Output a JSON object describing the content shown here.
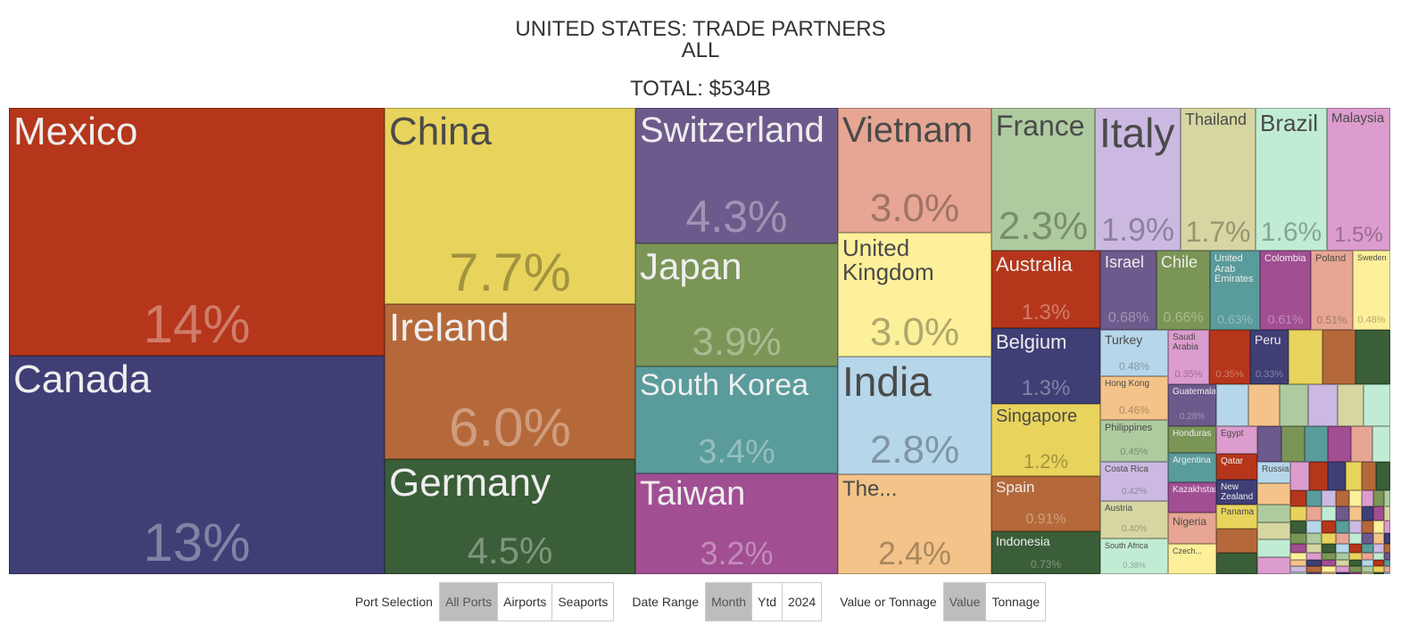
{
  "chart_data": {
    "type": "treemap",
    "title": "UNITED STATES: TRADE PARTNERS",
    "subtitle": "ALL",
    "annotation": "TOTAL: $534B",
    "categories": [
      "Mexico",
      "Canada",
      "China",
      "Ireland",
      "Germany",
      "Switzerland",
      "Japan",
      "South Korea",
      "Taiwan",
      "Vietnam",
      "United Kingdom",
      "India",
      "The...",
      "France",
      "Italy",
      "Thailand",
      "Brazil",
      "Malaysia",
      "Australia",
      "Belgium",
      "Singapore",
      "Spain",
      "Indonesia",
      "Israel",
      "Chile",
      "United Arab Emirates",
      "Colombia",
      "Poland",
      "Sweden",
      "Turkey",
      "Hong Kong",
      "Philippines",
      "Costa Rica",
      "Austria",
      "South Africa",
      "Saudi Arabia",
      null,
      "Peru",
      "Guatemala",
      "Honduras",
      "Argentina",
      "Kazakhstan",
      "Nigeria",
      "Czech...",
      "Egypt",
      "Qatar",
      "New Zealand",
      "Panama",
      "Russia"
    ],
    "values": [
      14,
      13,
      7.7,
      6.0,
      4.5,
      4.3,
      3.9,
      3.4,
      3.2,
      3.0,
      3.0,
      2.8,
      2.4,
      2.3,
      1.9,
      1.7,
      1.6,
      1.5,
      1.3,
      1.3,
      1.2,
      0.91,
      0.73,
      0.68,
      0.66,
      0.63,
      0.61,
      0.51,
      0.48,
      0.48,
      0.46,
      0.45,
      0.42,
      0.4,
      0.38,
      0.35,
      0.35,
      0.33,
      0.28,
      0.18,
      0.2,
      0.2,
      0.21,
      0.2,
      0.16,
      0.15,
      0.14,
      0.14,
      0.1
    ],
    "value_labels": [
      "14%",
      "13%",
      "7.7%",
      "6.0%",
      "4.5%",
      "4.3%",
      "3.9%",
      "3.4%",
      "3.2%",
      "3.0%",
      "3.0%",
      "2.8%",
      "2.4%",
      "2.3%",
      "1.9%",
      "1.7%",
      "1.6%",
      "1.5%",
      "1.3%",
      "1.3%",
      "1.2%",
      "0.91%",
      "0.73%",
      "0.68%",
      "0.66%",
      "0.63%",
      "0.61%",
      "0.51%",
      "0.48%",
      "0.48%",
      "0.46%",
      "0.45%",
      "0.42%",
      "0.40%",
      "0.38%",
      "0.35%",
      "0.35%",
      "0.33%",
      "0.28%",
      null,
      null,
      null,
      null,
      null,
      null,
      null,
      null,
      null,
      null
    ],
    "colors": [
      "#b5361a",
      "#3f3f76",
      "#e8d35c",
      "#b5693a",
      "#3a5e37",
      "#6d5a8c",
      "#7b9556",
      "#5a9b9b",
      "#a14e93",
      "#e6a693",
      "#fdf09a",
      "#b6d6ea",
      "#f3c389",
      "#aecba0",
      "#cbb9e2",
      "#d6d6a2",
      "#c1ecd4",
      "#dc9cce",
      "#b5361a",
      "#3f3f76",
      "#e8d35c",
      "#b5693a",
      "#3a5e37",
      "#6d5a8c",
      "#7b9556",
      "#5a9b9b",
      "#a14e93",
      "#e6a693",
      "#fdf09a",
      "#b6d6ea",
      "#f3c389",
      "#aecba0",
      "#cbb9e2",
      "#d6d6a2",
      "#c1ecd4",
      "#dc9cce",
      "#b5361a",
      "#3f3f76",
      "#6d5a8c",
      "#7b9556",
      "#5a9b9b",
      "#a14e93",
      "#e6a693",
      "#fdf09a",
      "#dc9cce",
      "#b5361a",
      "#3f3f76",
      "#e8d35c",
      "#b6d6ea"
    ]
  },
  "controls": [
    {
      "label": "Port Selection",
      "options": [
        "All Ports",
        "Airports",
        "Seaports"
      ],
      "selected": 0
    },
    {
      "label": "Date Range",
      "options": [
        "Month",
        "Ytd",
        "2024"
      ],
      "selected": 0
    },
    {
      "label": "Value or Tonnage",
      "options": [
        "Value",
        "Tonnage"
      ],
      "selected": 0
    }
  ]
}
